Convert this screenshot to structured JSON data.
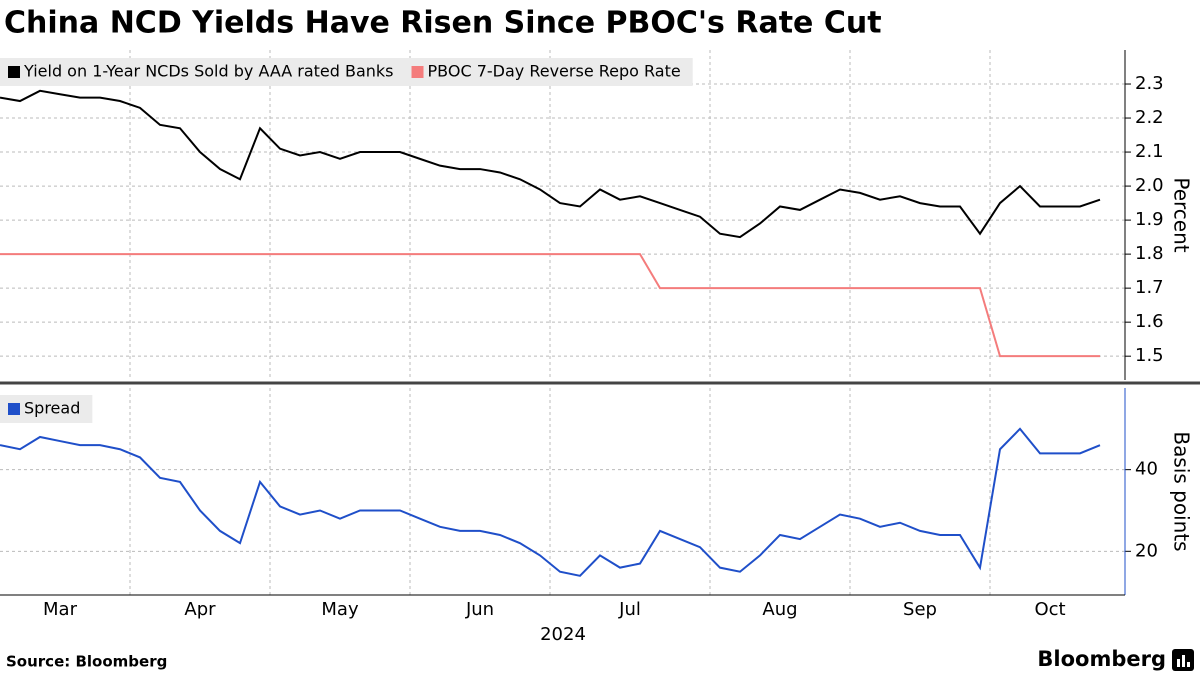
{
  "title": "China NCD Yields Have Risen Since PBOC's Rate Cut",
  "source": "Source: Bloomberg",
  "brand": "Bloomberg",
  "chart_data": [
    {
      "type": "line",
      "y_label": "Percent",
      "ylim": [
        1.43,
        2.4
      ],
      "yticks": [
        1.5,
        1.6,
        1.7,
        1.8,
        1.9,
        {
          "value": 2,
          "label": "2.0"
        },
        2.1,
        2.2,
        2.3
      ],
      "grid": true,
      "series": [
        {
          "name": "Yield on 1-Year NCDs Sold by AAA rated Banks",
          "color": "#000000",
          "values": [
            2.26,
            2.25,
            2.28,
            2.27,
            2.26,
            2.26,
            2.25,
            2.23,
            2.18,
            2.17,
            2.1,
            2.05,
            2.02,
            2.17,
            2.11,
            2.09,
            2.1,
            2.08,
            2.1,
            2.1,
            2.1,
            2.08,
            2.06,
            2.05,
            2.05,
            2.04,
            2.02,
            1.99,
            1.95,
            1.94,
            1.99,
            1.96,
            1.97,
            1.95,
            1.93,
            1.91,
            1.86,
            1.85,
            1.89,
            1.94,
            1.93,
            1.96,
            1.99,
            1.98,
            1.96,
            1.97,
            1.95,
            1.94,
            1.94,
            1.86,
            1.95,
            2.0,
            1.94,
            1.94,
            1.94,
            1.96
          ]
        },
        {
          "name": "PBOC 7-Day Reverse Repo Rate",
          "color": "#f47c7c",
          "values": [
            1.8,
            1.8,
            1.8,
            1.8,
            1.8,
            1.8,
            1.8,
            1.8,
            1.8,
            1.8,
            1.8,
            1.8,
            1.8,
            1.8,
            1.8,
            1.8,
            1.8,
            1.8,
            1.8,
            1.8,
            1.8,
            1.8,
            1.8,
            1.8,
            1.8,
            1.8,
            1.8,
            1.8,
            1.8,
            1.8,
            1.8,
            1.8,
            1.8,
            1.7,
            1.7,
            1.7,
            1.7,
            1.7,
            1.7,
            1.7,
            1.7,
            1.7,
            1.7,
            1.7,
            1.7,
            1.7,
            1.7,
            1.7,
            1.7,
            1.7,
            1.5,
            1.5,
            1.5,
            1.5,
            1.5,
            1.5
          ]
        }
      ]
    },
    {
      "type": "line",
      "y_label": "Basis points",
      "x_label": "2024",
      "x": [
        "Mar",
        "Mar",
        "Mar",
        "Mar",
        "Mar",
        "Mar",
        "Mar",
        "Apr",
        "Apr",
        "Apr",
        "Apr",
        "Apr",
        "Apr",
        "Apr",
        "May",
        "May",
        "May",
        "May",
        "May",
        "May",
        "May",
        "Jun",
        "Jun",
        "Jun",
        "Jun",
        "Jun",
        "Jun",
        "Jun",
        "Jul",
        "Jul",
        "Jul",
        "Jul",
        "Jul",
        "Jul",
        "Jul",
        "Jul",
        "Aug",
        "Aug",
        "Aug",
        "Aug",
        "Aug",
        "Aug",
        "Aug",
        "Sep",
        "Sep",
        "Sep",
        "Sep",
        "Sep",
        "Sep",
        "Sep",
        "Oct",
        "Oct",
        "Oct",
        "Oct",
        "Oct",
        "Oct"
      ],
      "ylim": [
        9.3,
        60
      ],
      "yticks": [
        20,
        40
      ],
      "grid": true,
      "series": [
        {
          "name": "Spread",
          "color": "#1f4fc9",
          "values": [
            46,
            45,
            48,
            47,
            46,
            46,
            45,
            43,
            38,
            37,
            30,
            25,
            22,
            37,
            31,
            29,
            30,
            28,
            30,
            30,
            30,
            28,
            26,
            25,
            25,
            24,
            22,
            19,
            15,
            14,
            19,
            16,
            17,
            25,
            23,
            21,
            16,
            15,
            19,
            24,
            23,
            26,
            29,
            28,
            26,
            27,
            25,
            24,
            24,
            16,
            45,
            50,
            44,
            44,
            44,
            46
          ]
        }
      ]
    }
  ]
}
